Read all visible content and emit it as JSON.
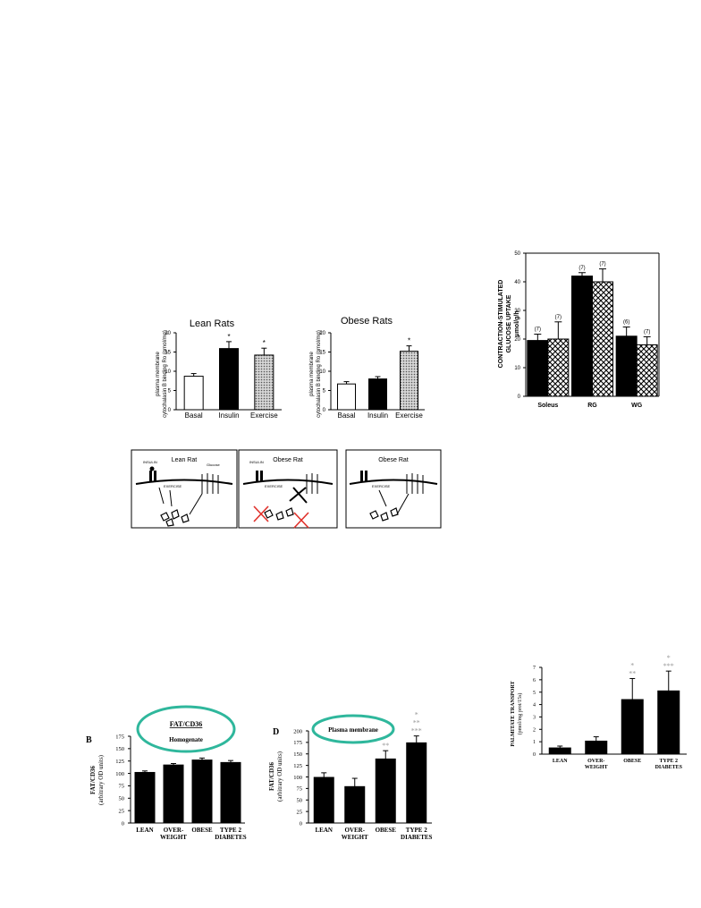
{
  "chart_data": [
    {
      "type": "bar",
      "title": "Lean Rats",
      "ylabel_lines": [
        "plasma membrane",
        "cytochalasin B binding Ro (pmol/mg)"
      ],
      "categories": [
        "Basal",
        "Insulin",
        "Exercise"
      ],
      "values": [
        8.7,
        15.9,
        14.2
      ],
      "errors": [
        0.7,
        1.8,
        1.8
      ],
      "sig": [
        "",
        "*",
        "*"
      ],
      "fills": [
        "white",
        "black",
        "dots"
      ],
      "ylim": [
        0,
        20
      ],
      "yticks": [
        "0",
        "5",
        "10",
        "15",
        "20"
      ]
    },
    {
      "type": "bar",
      "title": "Obese Rats",
      "ylabel_lines": [
        "plasma membrane",
        "cytochalasin B binding Ro (pmol/mg)"
      ],
      "categories": [
        "Basal",
        "Insulin",
        "Exercise"
      ],
      "values": [
        6.7,
        8.0,
        15.2
      ],
      "errors": [
        0.6,
        0.6,
        1.4
      ],
      "sig": [
        "",
        "",
        "*"
      ],
      "fills": [
        "white",
        "black",
        "dots"
      ],
      "ylim": [
        0,
        20
      ],
      "yticks": [
        "0",
        "5",
        "10",
        "15",
        "20"
      ]
    },
    {
      "type": "bar",
      "ylabel_lines": [
        "CONTRACTION-STIMULATED",
        "GLUCOSE UPTAKE",
        "μmol/g/h"
      ],
      "categories": [
        "Soleus",
        "RG",
        "WG"
      ],
      "series": [
        {
          "values": [
            19.5,
            42.0,
            21.0
          ],
          "errors": [
            2.2,
            1.2,
            3.2
          ],
          "n": [
            "(7)",
            "(7)",
            "(6)"
          ],
          "fill": "black"
        },
        {
          "values": [
            20.0,
            40.0,
            18.0
          ],
          "errors": [
            6.0,
            4.5,
            2.8
          ],
          "n": [
            "(7)",
            "(7)",
            "(7)"
          ],
          "fill": "crosshatch"
        }
      ],
      "ylim": [
        0,
        50
      ],
      "yticks": [
        "0",
        "10",
        "20",
        "30",
        "40",
        "50"
      ]
    },
    {
      "type": "bar",
      "panel_label": "B",
      "callout_title": "FAT/CD36",
      "callout_sub": "Homogenate",
      "ylabel_lines": [
        "FAT/CD36",
        "(arbitrary OD units)"
      ],
      "categories": [
        "LEAN",
        "OVER-|WEIGHT",
        "OBESE",
        "TYPE 2|DIABETES"
      ],
      "values": [
        102,
        117,
        127,
        122
      ],
      "errors": [
        3,
        3,
        4,
        4
      ],
      "sig": [
        "",
        "",
        "",
        ""
      ],
      "ylim": [
        0,
        175
      ],
      "yticks": [
        "0",
        "25",
        "50",
        "75",
        "100",
        "125",
        "150",
        "175"
      ]
    },
    {
      "type": "bar",
      "panel_label": "D",
      "callout_title": "Plasma membrane",
      "ylabel_lines": [
        "FAT/CD36",
        "(arbitrary OD units)"
      ],
      "categories": [
        "LEAN",
        "OVER-|WEIGHT",
        "OBESE",
        "TYPE 2|DIABETES"
      ],
      "values": [
        99,
        79,
        139,
        174
      ],
      "errors": [
        10,
        18,
        18,
        15
      ],
      "sig": [
        "",
        "",
        "**",
        "*|**|***"
      ],
      "ylim": [
        0,
        200
      ],
      "yticks": [
        "0",
        "25",
        "50",
        "75",
        "100",
        "125",
        "150",
        "175",
        "200"
      ]
    },
    {
      "type": "bar",
      "ylabel_lines": [
        "PALMITATE TRANSPORT",
        "(pmol/mg prot/15s)"
      ],
      "categories": [
        "LEAN",
        "OVER-|WEIGHT",
        "OBESE",
        "TYPE 2|DIABETES"
      ],
      "values": [
        0.5,
        1.05,
        4.4,
        5.1
      ],
      "errors": [
        0.15,
        0.35,
        1.7,
        1.6
      ],
      "sig": [
        "",
        "",
        "*|**",
        "*|***"
      ],
      "ylim": [
        0,
        7
      ],
      "yticks": [
        "0",
        "1",
        "2",
        "3",
        "4",
        "5",
        "6",
        "7"
      ]
    }
  ],
  "diagram": {
    "panels": [
      {
        "title": "Lean Rat",
        "labels": [
          "INSULIN",
          "EXERCISE",
          "Glucose"
        ]
      },
      {
        "title": "Obese Rat",
        "labels": [
          "INSULIN",
          "EXERCISE"
        ]
      },
      {
        "title": "Obese Rat",
        "labels": [
          "EXERCISE"
        ]
      }
    ]
  },
  "colors": {
    "bar": "#000000",
    "sig_star": "#9a9a9a",
    "callout_ring": "#2fb79c",
    "x_mark": "#e0302a"
  }
}
